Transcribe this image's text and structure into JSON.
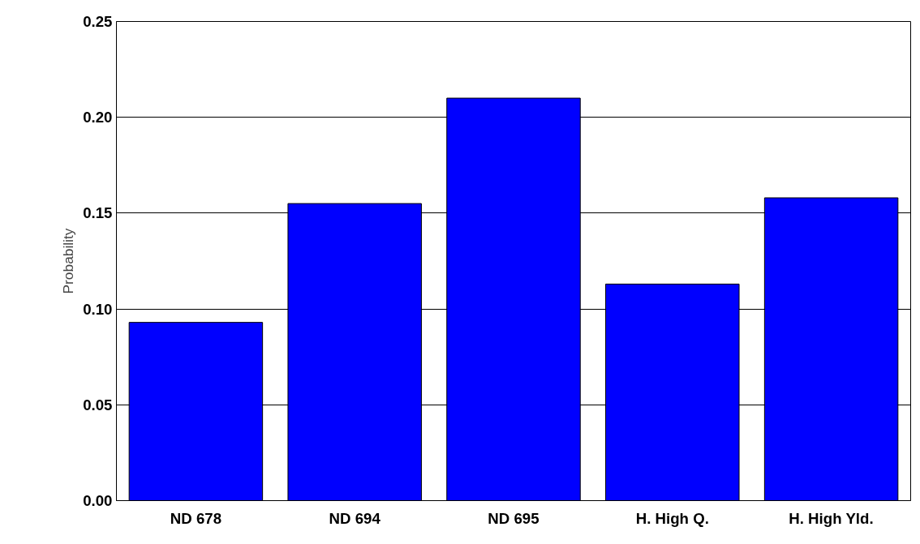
{
  "chart_data": {
    "type": "bar",
    "ylabel": "Probability",
    "categories": [
      "ND 678",
      "ND 694",
      "ND 695",
      "H. High Q.",
      "H. High Yld."
    ],
    "values": [
      0.093,
      0.155,
      0.21,
      0.113,
      0.158
    ],
    "color": "#0000ff",
    "ylim": [
      0,
      0.25
    ],
    "yticks": [
      {
        "value": 0,
        "label": "0.00"
      },
      {
        "value": 0.05,
        "label": "0.05"
      },
      {
        "value": 0.1,
        "label": "0.10"
      },
      {
        "value": 0.15,
        "label": "0.15"
      },
      {
        "value": 0.2,
        "label": "0.20"
      },
      {
        "value": 0.25,
        "label": "0.25"
      }
    ],
    "grid": "y"
  }
}
